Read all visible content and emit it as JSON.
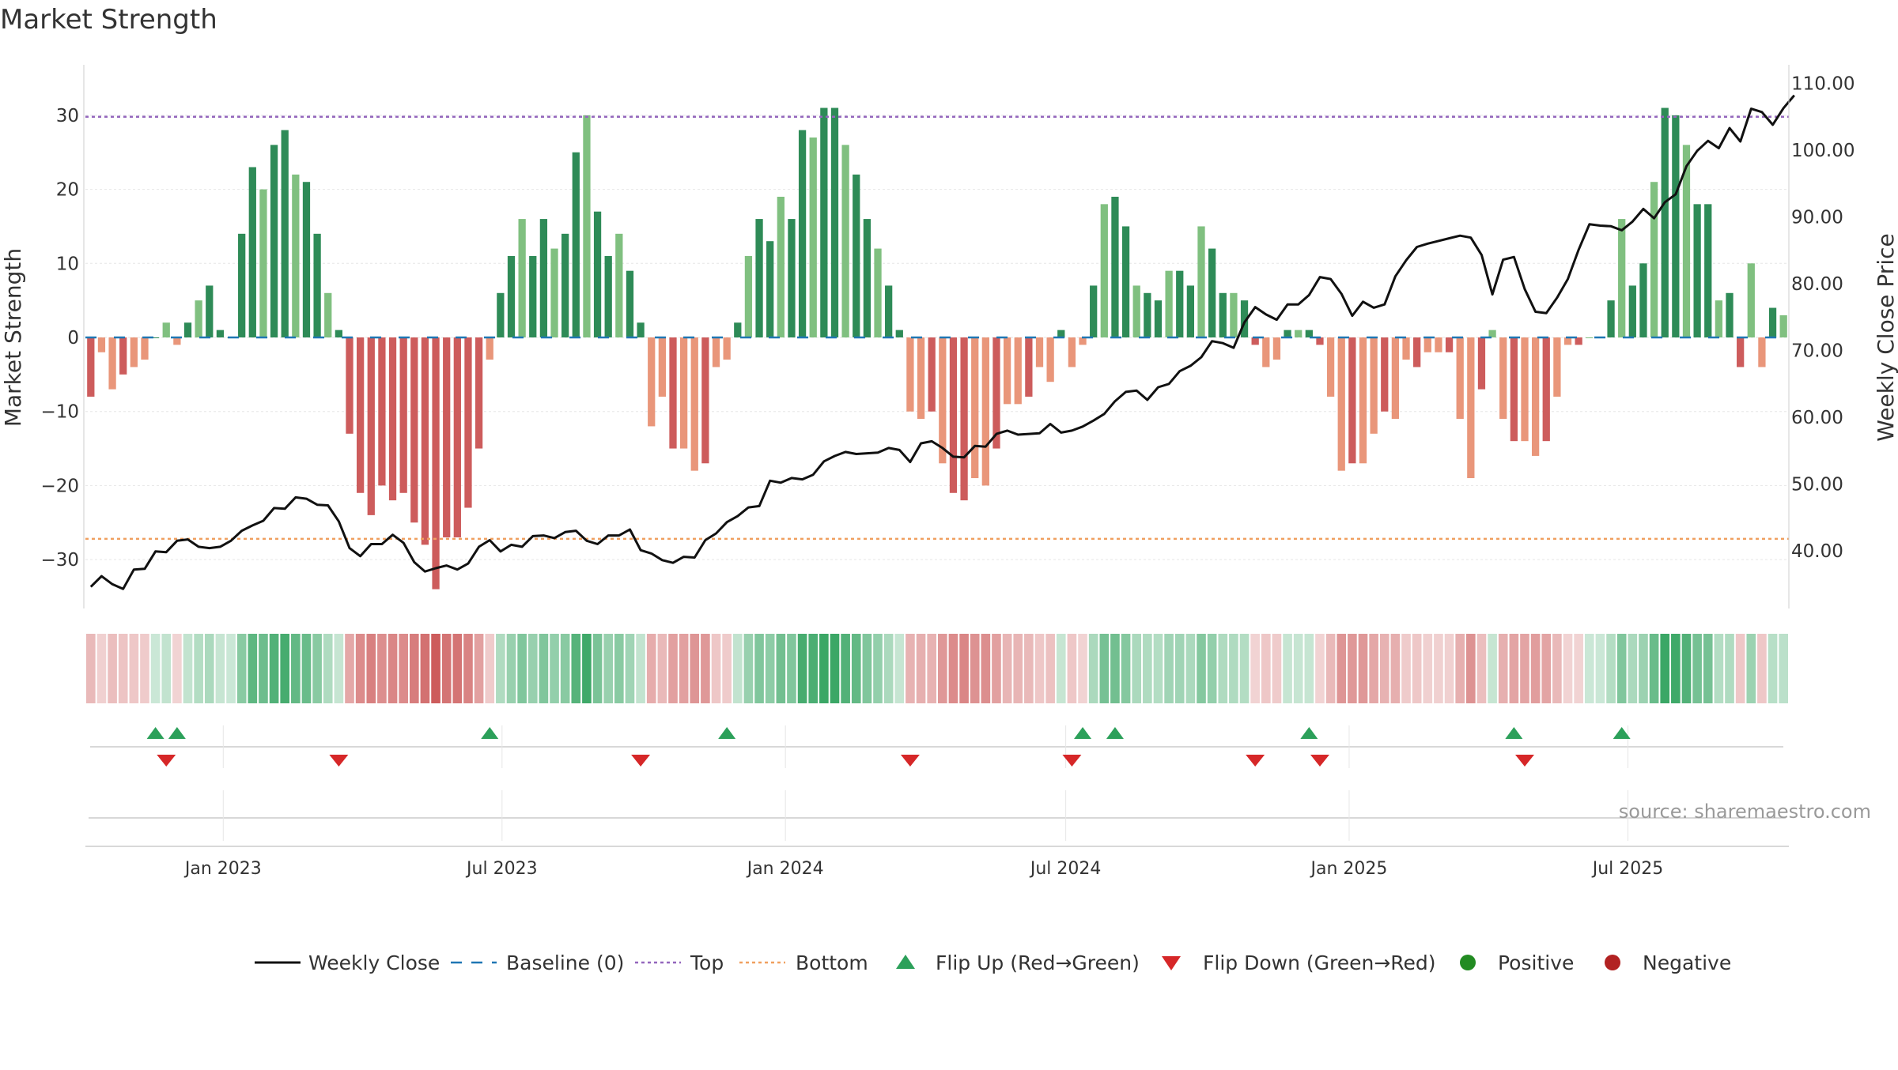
{
  "title": "Market Strength",
  "source": "source: sharemaestro.com",
  "colors": {
    "price_line": "#111111",
    "baseline": "#1f77b4",
    "top_line": "#9467bd",
    "bottom_line": "#f0a060",
    "pos_strong": "#2e8b57",
    "pos_light": "#80c080",
    "neg_strong": "#cd5c5c",
    "neg_light": "#e9967a",
    "flip_up": "#2ca05a",
    "flip_down": "#d62728",
    "positive_dot": "#228b22",
    "negative_dot": "#b22222",
    "grid": "#e6e6e6",
    "axis_text": "#333333"
  },
  "chart_data": {
    "type": "bar",
    "title": "Market Strength",
    "ylabel_left": "Market Strength",
    "ylabel_right": "Weekly Close Price",
    "ylim_left": [
      -37,
      37
    ],
    "ylim_right": [
      30,
      115
    ],
    "yticks_left": [
      30,
      20,
      10,
      0,
      -10,
      -20,
      -30
    ],
    "yticks_left_labels": [
      "30",
      "20",
      "10",
      "0",
      "−10",
      "−20",
      "−30"
    ],
    "yticks_right": [
      110,
      100,
      90,
      80,
      70,
      60,
      50,
      40
    ],
    "yticks_right_labels": [
      "110.00",
      "100.00",
      "90.00",
      "80.00",
      "70.00",
      "60.00",
      "50.00",
      "40.00"
    ],
    "x_start": "2022-10-07",
    "x_interval_days": 7,
    "xticks": [
      {
        "date": "2023-01-01",
        "label": "Jan 2023"
      },
      {
        "date": "2023-07-01",
        "label": "Jul 2023"
      },
      {
        "date": "2024-01-01",
        "label": "Jan 2024"
      },
      {
        "date": "2024-07-01",
        "label": "Jul 2024"
      },
      {
        "date": "2025-01-01",
        "label": "Jan 2025"
      },
      {
        "date": "2025-07-01",
        "label": "Jul 2025"
      }
    ],
    "top_level": 29.8,
    "bottom_level": -27.2,
    "strength": [
      -8,
      -2,
      -7,
      -5,
      -4,
      -3,
      0,
      2,
      -1,
      2,
      5,
      7,
      1,
      0,
      14,
      23,
      20,
      26,
      28,
      22,
      21,
      14,
      6,
      1,
      -13,
      -21,
      -24,
      -20,
      -22,
      -21,
      -25,
      -28,
      -34,
      -27,
      -27,
      -23,
      -15,
      -3,
      6,
      11,
      16,
      11,
      16,
      12,
      14,
      25,
      30,
      17,
      11,
      14,
      9,
      2,
      -12,
      -8,
      -15,
      -15,
      -18,
      -17,
      -4,
      -3,
      2,
      11,
      16,
      13,
      19,
      16,
      28,
      27,
      31,
      31,
      26,
      22,
      16,
      12,
      7,
      1,
      -10,
      -11,
      -10,
      -17,
      -21,
      -22,
      -19,
      -20,
      -15,
      -9,
      -9,
      -8,
      -4,
      -6,
      1,
      -4,
      -1,
      7,
      18,
      19,
      15,
      7,
      6,
      5,
      9,
      9,
      7,
      15,
      12,
      6,
      6,
      5,
      -1,
      -4,
      -3,
      1,
      1,
      1,
      -1,
      -8,
      -18,
      -17,
      -17,
      -13,
      -10,
      -11,
      -3,
      -4,
      -2,
      -2,
      -2,
      -11,
      -19,
      -7,
      1,
      -11,
      -14,
      -14,
      -16,
      -14,
      -8,
      -1,
      -1,
      0,
      0,
      5,
      16,
      7,
      10,
      21,
      31,
      30,
      26,
      18,
      18,
      5,
      6,
      -4,
      10,
      -4,
      4,
      3
    ],
    "weekly_close": [
      34.6,
      36.2,
      35.0,
      34.3,
      37.2,
      37.3,
      39.9,
      39.8,
      41.5,
      41.7,
      40.6,
      40.4,
      40.6,
      41.5,
      43.0,
      43.8,
      44.5,
      46.4,
      46.3,
      48.0,
      47.8,
      46.9,
      46.8,
      44.4,
      40.4,
      39.2,
      41.0,
      41.0,
      42.4,
      41.2,
      38.3,
      36.9,
      37.4,
      37.8,
      37.2,
      38.1,
      40.6,
      41.6,
      39.9,
      40.9,
      40.6,
      42.2,
      42.3,
      41.9,
      42.8,
      43.0,
      41.5,
      41.0,
      42.3,
      42.3,
      43.2,
      40.1,
      39.6,
      38.6,
      38.2,
      39.1,
      39.0,
      41.6,
      42.6,
      44.3,
      45.2,
      46.5,
      46.7,
      50.5,
      50.2,
      50.9,
      50.7,
      51.4,
      53.4,
      54.2,
      54.8,
      54.5,
      54.6,
      54.7,
      55.4,
      55.1,
      53.3,
      56.1,
      56.4,
      55.4,
      54.1,
      54.0,
      55.7,
      55.6,
      57.5,
      58.0,
      57.4,
      57.5,
      57.6,
      59.0,
      57.7,
      58.0,
      58.6,
      59.5,
      60.5,
      62.4,
      63.8,
      64.0,
      62.6,
      64.5,
      65.0,
      66.9,
      67.7,
      69.0,
      71.4,
      71.1,
      70.4,
      74.2,
      76.5,
      75.4,
      74.6,
      76.9,
      76.9,
      78.3,
      81.0,
      80.7,
      78.5,
      75.2,
      77.3,
      76.4,
      76.9,
      81.1,
      83.5,
      85.5,
      86.0,
      86.4,
      86.8,
      87.2,
      86.9,
      84.3,
      78.4,
      83.6,
      84.0,
      79.2,
      75.8,
      75.6,
      77.9,
      80.7,
      85.1,
      88.9,
      88.7,
      88.6,
      88.0,
      89.3,
      91.2,
      89.8,
      92.2,
      93.4,
      97.6,
      99.9,
      101.4,
      100.3,
      103.3,
      101.3,
      106.2,
      105.7,
      103.8,
      106.3,
      108.2
    ],
    "bands_note": "strip shade follows strength sign",
    "flip_up_weeks": [
      6,
      8,
      37,
      59,
      92,
      95,
      113,
      132,
      142
    ],
    "flip_down_weeks": [
      7,
      23,
      51,
      76,
      91,
      108,
      114,
      133
    ],
    "legend": [
      {
        "label": "Weekly Close",
        "kind": "line"
      },
      {
        "label": "Baseline (0)",
        "kind": "dash"
      },
      {
        "label": "Top",
        "kind": "dot-purple"
      },
      {
        "label": "Bottom",
        "kind": "dot-orange"
      },
      {
        "label": "Flip Up (Red→Green)",
        "kind": "tri-up"
      },
      {
        "label": "Flip Down (Green→Red)",
        "kind": "tri-down"
      },
      {
        "label": "Positive",
        "kind": "dot-green"
      },
      {
        "label": "Negative",
        "kind": "dot-red"
      }
    ],
    "legend_position": "bottom-center",
    "grid": true
  }
}
